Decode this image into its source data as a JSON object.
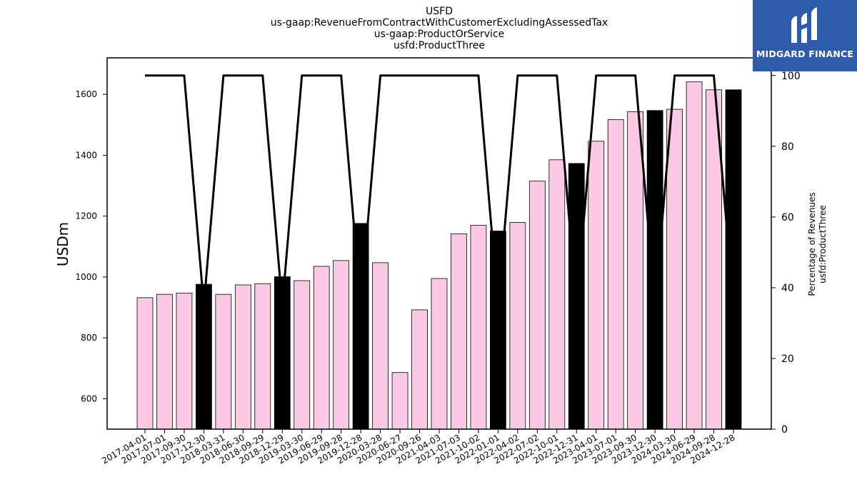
{
  "logo": {
    "text": "MIDGARD FINANCE",
    "icon": "midgard-logo-icon",
    "bg_color": "#2f5bad"
  },
  "chart_data": {
    "type": "bar",
    "title_lines": [
      "USFD",
      "us-gaap:RevenueFromContractWithCustomerExcludingAssessedTax",
      "us-gaap:ProductOrService",
      "usfd:ProductThree"
    ],
    "ylabel": "USDm",
    "ylabel_right": [
      "Percentage of Revenues",
      "usfd:ProductThree"
    ],
    "ylim": [
      500,
      1720
    ],
    "yticks": [
      600,
      800,
      1000,
      1200,
      1400,
      1600
    ],
    "ylim_right": [
      0,
      105
    ],
    "yticks_right": [
      0,
      20,
      40,
      60,
      80,
      100
    ],
    "categories": [
      "2017-04-01",
      "2017-07-01",
      "2017-09-30",
      "2017-12-30",
      "2018-03-31",
      "2018-06-30",
      "2018-09-29",
      "2018-12-29",
      "2019-03-30",
      "2019-06-29",
      "2019-09-28",
      "2019-12-28",
      "2020-03-28",
      "2020-06-27",
      "2020-09-26",
      "2021-04-03",
      "2021-07-03",
      "2021-10-02",
      "2022-01-01",
      "2022-04-02",
      "2022-07-02",
      "2022-10-01",
      "2022-12-31",
      "2023-04-01",
      "2023-07-01",
      "2023-09-30",
      "2023-12-30",
      "2024-03-30",
      "2024-06-29",
      "2024-09-28",
      "2024-12-28"
    ],
    "series": [
      {
        "type": "bar",
        "values": [
          932,
          943,
          947,
          976,
          943,
          974,
          978,
          1001,
          988,
          1035,
          1054,
          1176,
          1047,
          686,
          892,
          995,
          1142,
          1170,
          1151,
          1179,
          1315,
          1385,
          1373,
          1446,
          1517,
          1543,
          1547,
          1551,
          1641,
          1615,
          1615
        ],
        "highlight": [
          false,
          false,
          false,
          true,
          false,
          false,
          false,
          true,
          false,
          false,
          false,
          true,
          false,
          false,
          false,
          false,
          false,
          false,
          true,
          false,
          false,
          false,
          true,
          false,
          false,
          false,
          true,
          false,
          false,
          false,
          true
        ],
        "color": "#fbc9e5",
        "highlight_color": "#000000"
      },
      {
        "type": "line",
        "axis": "right",
        "values": [
          100,
          100,
          100,
          35,
          100,
          100,
          100,
          35,
          100,
          100,
          100,
          35,
          100,
          100,
          100,
          100,
          100,
          100,
          35,
          100,
          100,
          100,
          35,
          100,
          100,
          100,
          35,
          100,
          100,
          100,
          35
        ],
        "color": "#000000"
      }
    ]
  }
}
